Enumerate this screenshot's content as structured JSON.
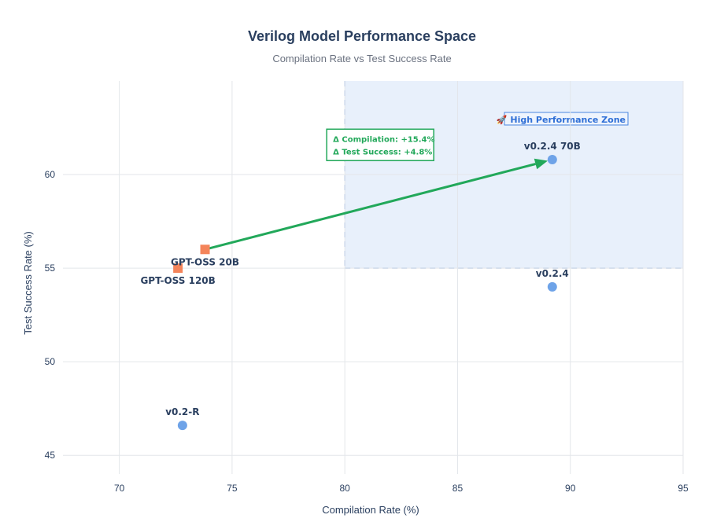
{
  "chart_data": {
    "type": "scatter",
    "title": "Verilog Model Performance Space",
    "subtitle": "Compilation Rate vs Test Success Rate",
    "xlabel": "Compilation Rate (%)",
    "ylabel": "Test Success Rate (%)",
    "xlim": [
      67.5,
      95
    ],
    "ylim": [
      44,
      65
    ],
    "x_ticks": [
      70,
      75,
      80,
      85,
      90,
      95
    ],
    "y_ticks": [
      45,
      50,
      55,
      60
    ],
    "grid": true,
    "points": [
      {
        "name": "v0.2.4 70B",
        "x": 89.2,
        "y": 60.8,
        "marker": "circle",
        "color": "#6ea3e8"
      },
      {
        "name": "v0.2.4",
        "x": 89.2,
        "y": 54.0,
        "marker": "circle",
        "color": "#6ea3e8"
      },
      {
        "name": "v0.2-R",
        "x": 72.8,
        "y": 46.6,
        "marker": "circle",
        "color": "#6ea3e8"
      },
      {
        "name": "GPT-OSS 20B",
        "x": 73.8,
        "y": 56.0,
        "marker": "square",
        "color": "#f4845a"
      },
      {
        "name": "GPT-OSS 120B",
        "x": 72.6,
        "y": 55.0,
        "marker": "square",
        "color": "#f4845a"
      }
    ],
    "zone": {
      "label": "🚀 High Performance Zone",
      "x_min": 80,
      "x_max": 95,
      "y_min": 55,
      "y_max": 65,
      "fill": "#e8f0fb",
      "border": "#a9c4ec"
    },
    "arrow": {
      "from": {
        "x": 73.8,
        "y": 56.0
      },
      "to": {
        "x": 89.2,
        "y": 60.8
      },
      "color": "#22a85a",
      "annotation": [
        "Δ Compilation: +15.4%",
        "Δ Test Success: +4.8%"
      ]
    }
  }
}
